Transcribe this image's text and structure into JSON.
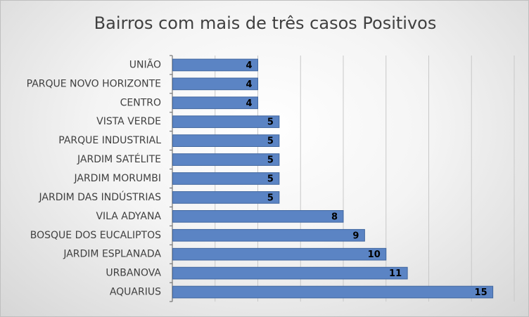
{
  "chart_data": {
    "type": "bar",
    "orientation": "horizontal",
    "title": "Bairros com mais de três casos Positivos",
    "xlabel": "",
    "ylabel": "",
    "categories": [
      "UNIÃO",
      "PARQUE NOVO HORIZONTE",
      "CENTRO",
      "VISTA VERDE",
      "PARQUE INDUSTRIAL",
      "JARDIM SATÉLITE",
      "JARDIM MORUMBI",
      "JARDIM DAS INDÚSTRIAS",
      "VILA ADYANA",
      "BOSQUE DOS EUCALIPTOS",
      "JARDIM ESPLANADA",
      "URBANOVA",
      "AQUARIUS"
    ],
    "values": [
      4,
      4,
      4,
      5,
      5,
      5,
      5,
      5,
      8,
      9,
      10,
      11,
      15
    ],
    "xlim": [
      0,
      16
    ],
    "grid": true,
    "legend": "none",
    "colors": {
      "bar": "#5b84c4",
      "bar_edge": "#41679f",
      "grid": "#c8c8c8",
      "axis": "#5f5f5f"
    }
  }
}
